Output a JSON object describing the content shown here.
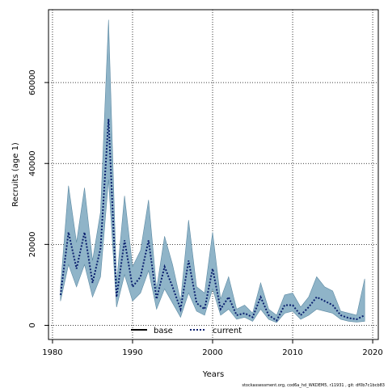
{
  "chart_data": {
    "type": "line",
    "xlabel": "Years",
    "ylabel": "Recruits (age 1)",
    "xlim": [
      1979.5,
      2020.7
    ],
    "ylim": [
      -3500,
      78000
    ],
    "x_ticks": [
      1980,
      1990,
      2000,
      2010,
      2020
    ],
    "y_ticks": [
      0,
      20000,
      40000,
      60000
    ],
    "x_grid": [
      1980,
      1990,
      2000,
      2010,
      2020
    ],
    "y_grid": [
      0,
      20000,
      40000,
      60000
    ],
    "grid": true,
    "legend_position": "bottom-center",
    "years": [
      1981,
      1982,
      1983,
      1984,
      1985,
      1986,
      1987,
      1988,
      1989,
      1990,
      1991,
      1992,
      1993,
      1994,
      1995,
      1996,
      1997,
      1998,
      1999,
      2000,
      2001,
      2002,
      2003,
      2004,
      2005,
      2006,
      2007,
      2008,
      2009,
      2010,
      2011,
      2012,
      2013,
      2014,
      2015,
      2016,
      2017,
      2018,
      2019
    ],
    "ci_upper": [
      9500,
      34500,
      20500,
      34000,
      16000,
      28000,
      75500,
      10500,
      32000,
      14500,
      18500,
      31000,
      9000,
      22000,
      15000,
      6000,
      26000,
      9500,
      8000,
      23000,
      6500,
      12000,
      4000,
      5000,
      3000,
      10500,
      4000,
      2500,
      7500,
      8000,
      4500,
      7000,
      12000,
      9500,
      8500,
      3500,
      3000,
      2500,
      11500
    ],
    "ci_lower": [
      6000,
      15000,
      9500,
      15000,
      7000,
      12000,
      36000,
      4500,
      12500,
      6000,
      8000,
      13500,
      4000,
      9000,
      5500,
      2000,
      8000,
      3500,
      2500,
      9000,
      2500,
      4000,
      1500,
      2000,
      1000,
      4000,
      1500,
      700,
      3000,
      3500,
      1500,
      2500,
      4000,
      3500,
      3000,
      1500,
      1000,
      800,
      1000
    ],
    "series": [
      {
        "name": "base",
        "color": "#000000",
        "style": "solid",
        "values": [
          null,
          null,
          null,
          null,
          null,
          null,
          null,
          null,
          null,
          null,
          null,
          null,
          null,
          null,
          null,
          null,
          null,
          null,
          null,
          null,
          null,
          null,
          null,
          null,
          null,
          null,
          null,
          null,
          null,
          null,
          null,
          null,
          null,
          null,
          null,
          null,
          null,
          null,
          null
        ]
      },
      {
        "name": "current",
        "color": "#0a1f6e",
        "style": "dotted",
        "values": [
          7500,
          23000,
          14000,
          23000,
          10500,
          19000,
          51000,
          7000,
          21000,
          9500,
          12000,
          21000,
          6500,
          14500,
          9500,
          4000,
          16000,
          5500,
          4000,
          14000,
          4000,
          7000,
          2500,
          3000,
          2000,
          7000,
          2500,
          1200,
          5000,
          5000,
          2500,
          4500,
          7000,
          6000,
          5000,
          2500,
          1800,
          1500,
          2500
        ]
      }
    ],
    "ci_fill_color": "#8fb4c8",
    "ci_line_color": "#5d8aa3"
  },
  "footnote": "stockassessment.org, cod6a_hd_WKDEM5, r11931 , git: df0b7c1bcb83"
}
